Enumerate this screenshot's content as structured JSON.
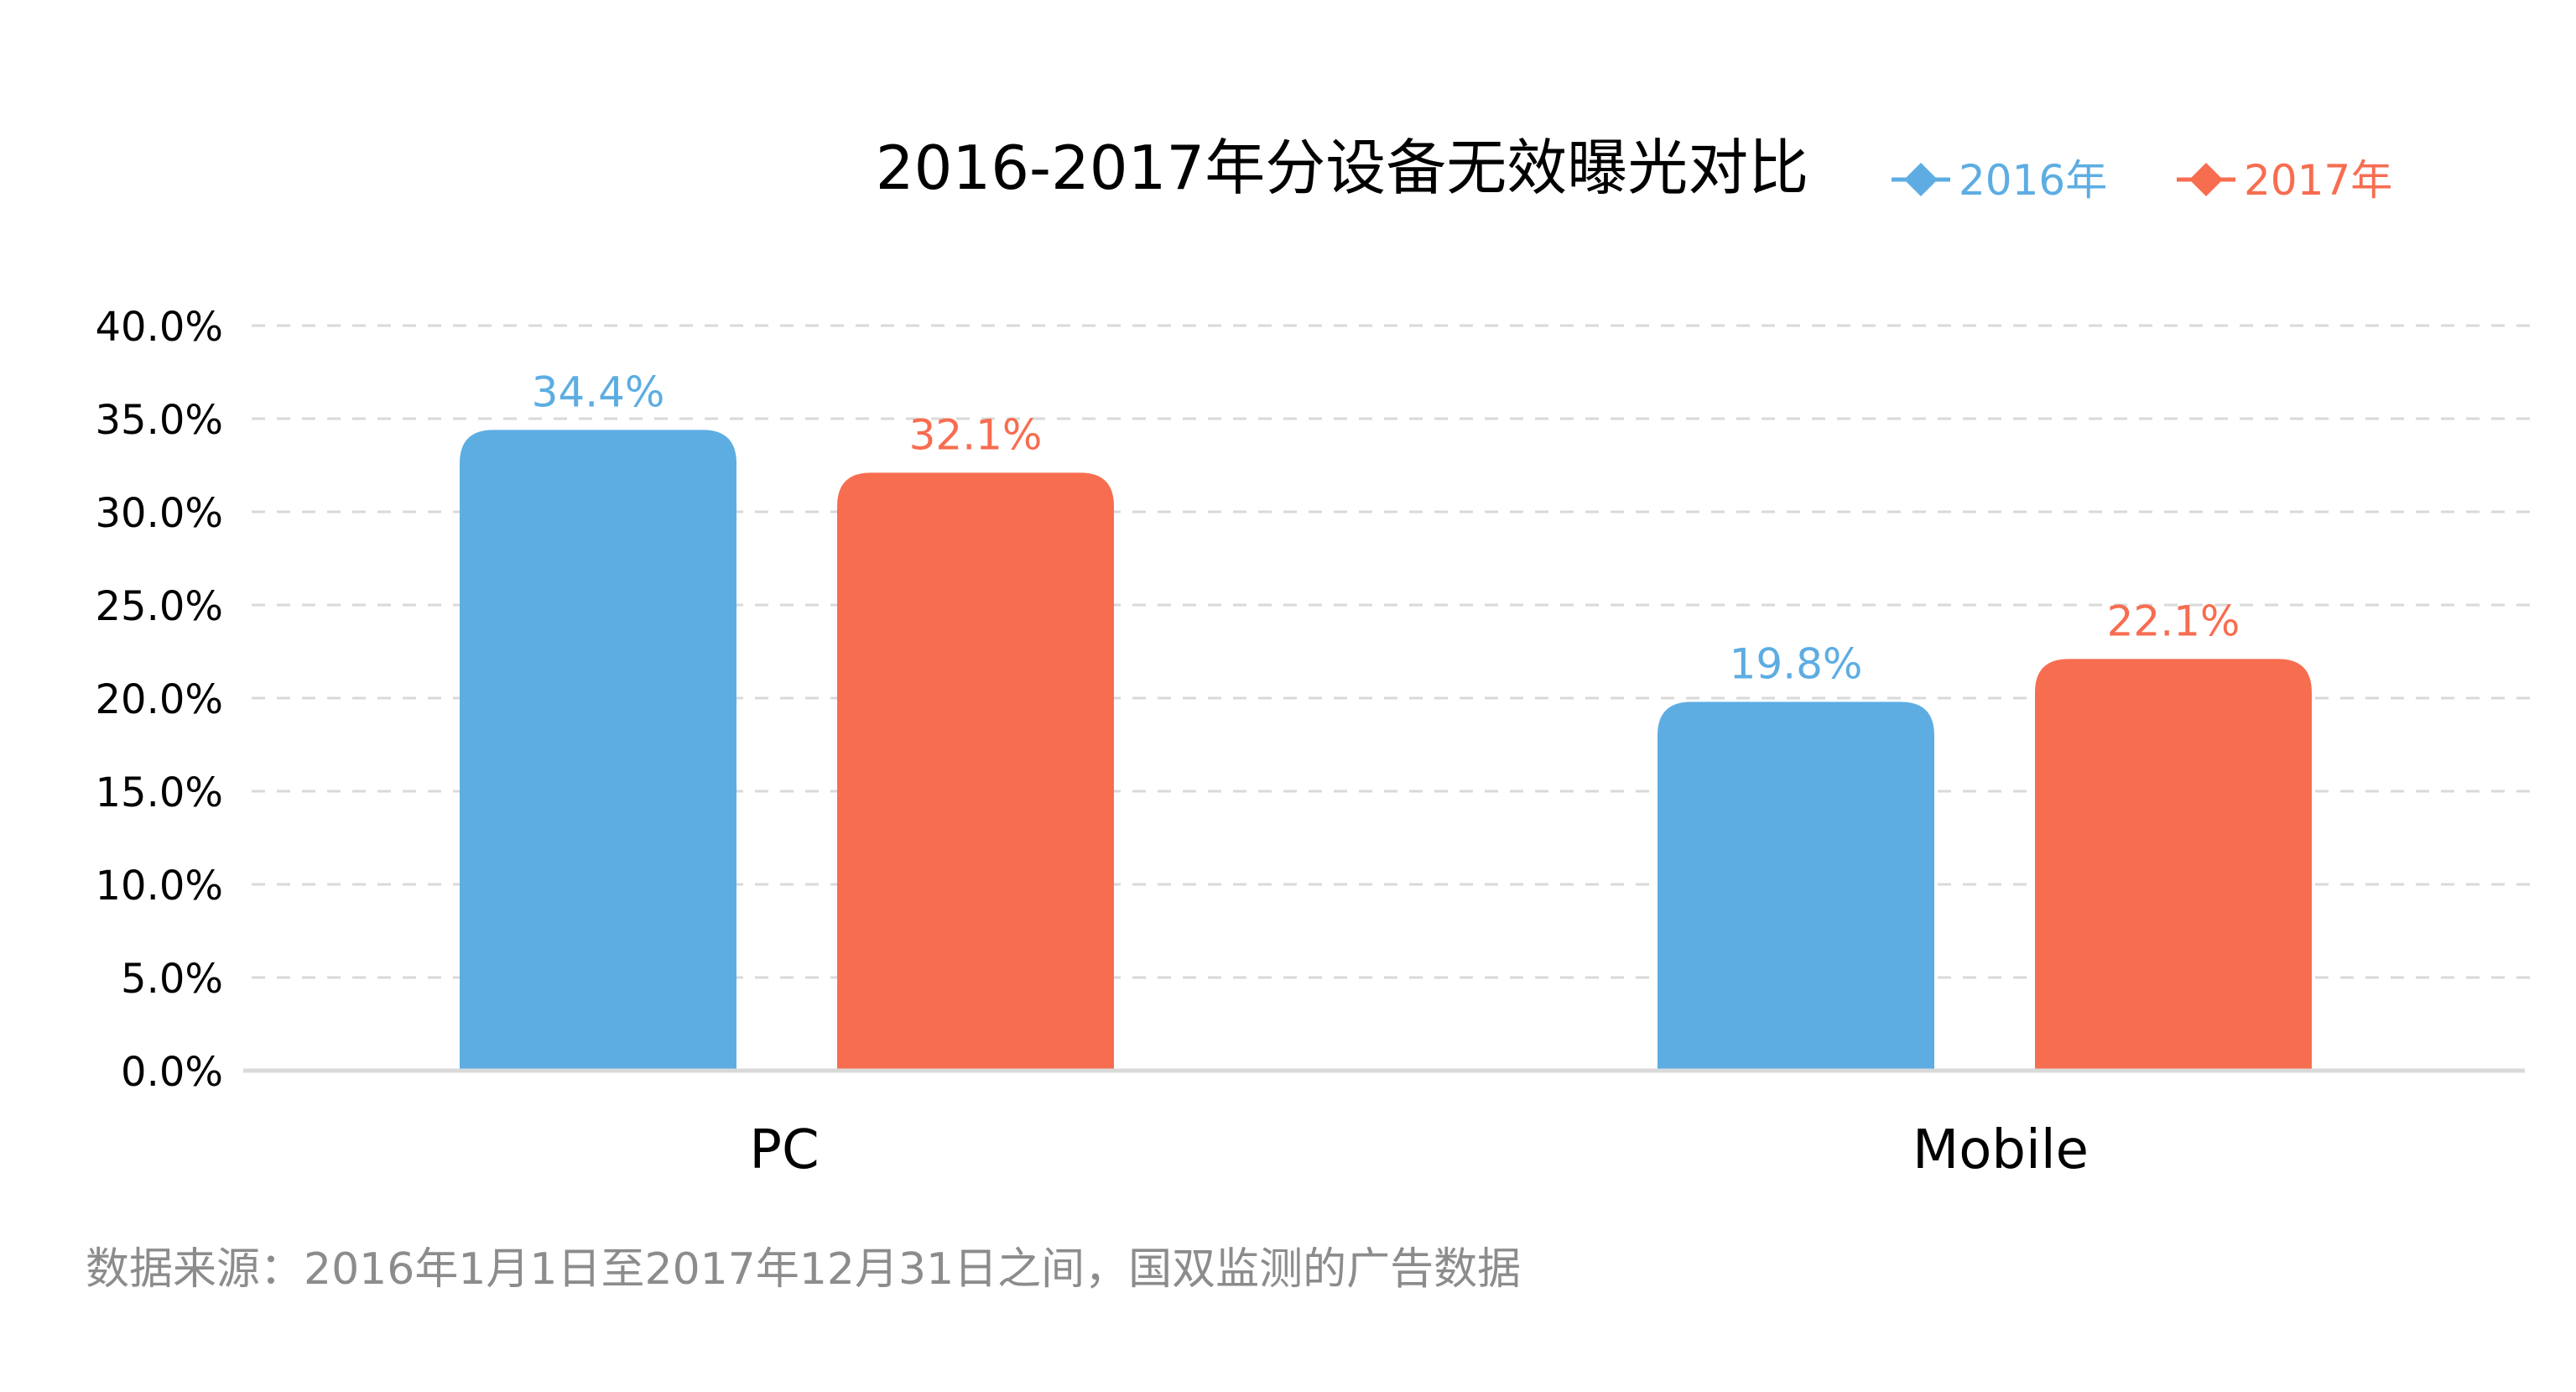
{
  "chart_data": {
    "type": "bar",
    "title": "2016-2017年分设备无效曝光对比",
    "categories": [
      "PC",
      "Mobile"
    ],
    "series": [
      {
        "name": "2016年",
        "values": [
          34.4,
          19.8
        ],
        "labels": [
          "34.4%",
          "19.8%"
        ],
        "color": "#5DADE2"
      },
      {
        "name": "2017年",
        "values": [
          32.1,
          22.1
        ],
        "labels": [
          "32.1%",
          "22.1%"
        ],
        "color": "#F76D50"
      }
    ],
    "ylim": [
      0,
      40
    ],
    "yticks": [
      {
        "value": 0,
        "label": "0.0%"
      },
      {
        "value": 5,
        "label": "5.0%"
      },
      {
        "value": 10,
        "label": "10.0%"
      },
      {
        "value": 15,
        "label": "15.0%"
      },
      {
        "value": 20,
        "label": "20.0%"
      },
      {
        "value": 25,
        "label": "25.0%"
      },
      {
        "value": 30,
        "label": "30.0%"
      },
      {
        "value": 35,
        "label": "35.0%"
      },
      {
        "value": 40,
        "label": "40.0%"
      }
    ],
    "grid": true,
    "grid_style": "dashed",
    "legend_position": "top-right",
    "xlabel": "",
    "ylabel": ""
  },
  "footnote": "数据来源：2016年1月1日至2017年12月31日之间，国双监测的广告数据"
}
